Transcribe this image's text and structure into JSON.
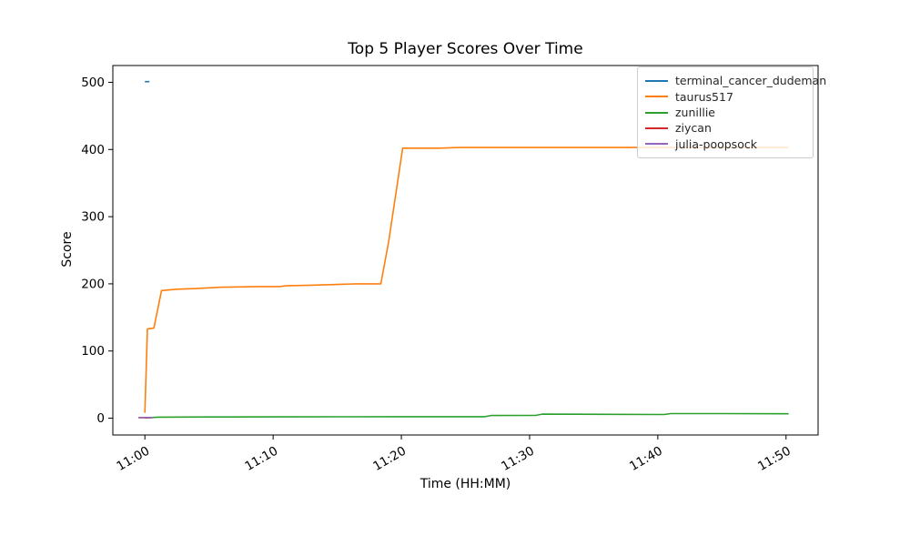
{
  "chart_data": {
    "type": "line",
    "title": "Top 5 Player Scores Over Time",
    "xlabel": "Time (HH:MM)",
    "ylabel": "Score",
    "x_unit": "minutes after 11:00",
    "xlim": [
      -2.5,
      52.5
    ],
    "ylim": [
      -25,
      525
    ],
    "grid": false,
    "legend_position": "upper right",
    "xticks": {
      "values": [
        0,
        10,
        20,
        30,
        40,
        50
      ],
      "labels": [
        "11:00",
        "11:10",
        "11:20",
        "11:30",
        "11:40",
        "11:50"
      ]
    },
    "yticks": [
      0,
      100,
      200,
      300,
      400,
      500
    ],
    "series": [
      {
        "name": "terminal_cancer_dudeman",
        "color": "#1f77b4",
        "points": [
          [
            0,
            501
          ],
          [
            0.35,
            501
          ]
        ]
      },
      {
        "name": "taurus517",
        "color": "#ff7f0e",
        "points": [
          [
            0,
            8
          ],
          [
            0.2,
            133
          ],
          [
            0.7,
            134
          ],
          [
            1.3,
            190
          ],
          [
            2.5,
            192
          ],
          [
            4,
            193
          ],
          [
            5,
            194
          ],
          [
            6,
            195
          ],
          [
            9,
            196
          ],
          [
            10.5,
            196
          ],
          [
            11,
            197
          ],
          [
            13,
            198
          ],
          [
            15,
            199
          ],
          [
            16.5,
            200
          ],
          [
            18.4,
            200
          ],
          [
            19,
            262
          ],
          [
            20.1,
            402
          ],
          [
            23,
            402
          ],
          [
            24.5,
            403
          ],
          [
            50.2,
            403
          ]
        ]
      },
      {
        "name": "zunillie",
        "color": "#2ca02c",
        "points": [
          [
            0,
            0.3
          ],
          [
            1,
            1.5
          ],
          [
            5,
            1.8
          ],
          [
            11,
            2
          ],
          [
            20,
            2.2
          ],
          [
            26.5,
            2.2
          ],
          [
            27,
            4
          ],
          [
            30.5,
            4.3
          ],
          [
            31,
            6
          ],
          [
            36,
            5.8
          ],
          [
            40.5,
            5.5
          ],
          [
            41,
            6.8
          ],
          [
            45,
            6.8
          ],
          [
            50.2,
            6.5
          ]
        ]
      },
      {
        "name": "ziycan",
        "color": "#d62728",
        "points": [
          [
            -0.5,
            0.7
          ],
          [
            0.5,
            0.7
          ]
        ]
      },
      {
        "name": "julia-poopsock",
        "color": "#9467bd",
        "points": [
          [
            -0.5,
            1
          ],
          [
            0.6,
            1
          ]
        ]
      }
    ]
  }
}
